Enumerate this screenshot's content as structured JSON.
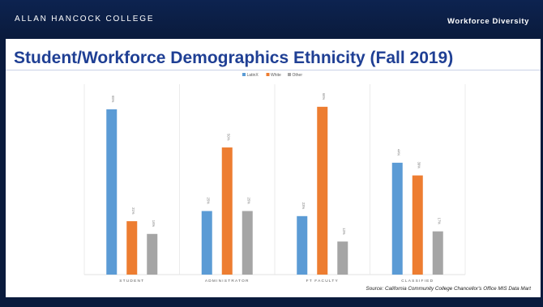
{
  "header": {
    "college": "ALLAN HANCOCK COLLEGE",
    "section": "Workforce Diversity"
  },
  "slide": {
    "title": "Student/Workforce Demographics Ethnicity (Fall 2019)",
    "source": "Source: California Community College Chancellor's Office MIS Data Mart"
  },
  "colors": {
    "header_bg": "#0a1b3d",
    "title": "#1f3f94",
    "latinx": "#5b9bd5",
    "white": "#ed7d31",
    "other": "#a5a5a5"
  },
  "chart_data": {
    "type": "bar",
    "title": "",
    "xlabel": "",
    "ylabel": "",
    "ylim": [
      0,
      72
    ],
    "grid": false,
    "legend": "top-center",
    "categories": [
      "STUDENT",
      "ADMINISTRATOR",
      "FT FACULTY",
      "CLASSIFIED"
    ],
    "series": [
      {
        "name": "LatinX",
        "color": "#5b9bd5",
        "values": [
          65,
          25,
          23,
          44
        ],
        "labels": [
          "65%",
          "25%",
          "23%",
          "44%"
        ]
      },
      {
        "name": "White",
        "color": "#ed7d31",
        "values": [
          21,
          50,
          66,
          39
        ],
        "labels": [
          "21%",
          "50%",
          "66%",
          "39%"
        ]
      },
      {
        "name": "Other",
        "color": "#a5a5a5",
        "values": [
          16,
          25,
          13,
          17
        ],
        "labels": [
          "16%",
          "25%",
          "13%",
          "17%"
        ]
      }
    ]
  }
}
